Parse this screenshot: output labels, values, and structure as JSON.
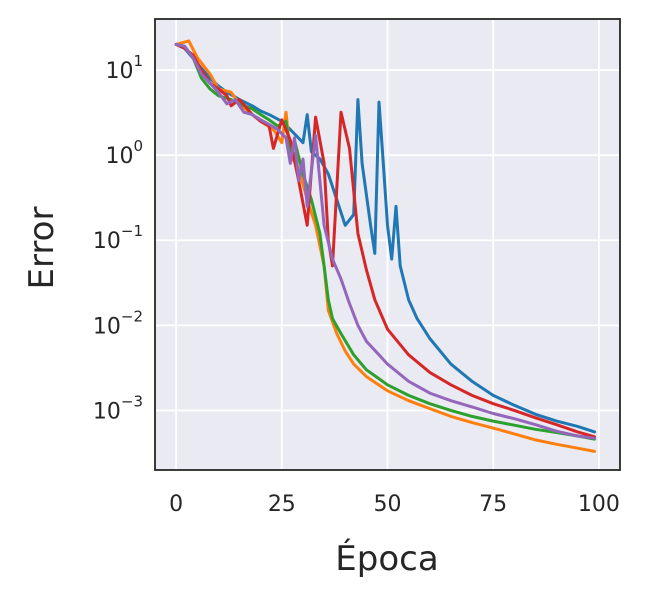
{
  "chart_data": {
    "type": "line",
    "xlabel": "Época",
    "ylabel": "Error",
    "xlim": [
      -5,
      105
    ],
    "ylim_log10": [
      -3.7,
      1.6
    ],
    "yscale": "log",
    "grid": true,
    "x_ticks": [
      0,
      25,
      50,
      75,
      100
    ],
    "x_tick_labels": [
      "0",
      "25",
      "50",
      "75",
      "100"
    ],
    "y_ticks_exponent": [
      1,
      0,
      -1,
      -2,
      -3
    ],
    "y_tick_base": "10",
    "y_tick_exponent_labels": [
      "1",
      "0",
      "−1",
      "−2",
      "−3"
    ],
    "colors": {
      "background": "#eaeaf2",
      "grid": "#ffffff",
      "spine": "#262626"
    },
    "series": [
      {
        "color": "#1f77b4",
        "points": [
          [
            0,
            20
          ],
          [
            2,
            18
          ],
          [
            5,
            12
          ],
          [
            8,
            8
          ],
          [
            10,
            6.5
          ],
          [
            12,
            5.5
          ],
          [
            15,
            4.5
          ],
          [
            18,
            3.8
          ],
          [
            20,
            3.3
          ],
          [
            22,
            3
          ],
          [
            25,
            2.5
          ],
          [
            27,
            2
          ],
          [
            30,
            1.4
          ],
          [
            31,
            3
          ],
          [
            32,
            1.1
          ],
          [
            34,
            0.9
          ],
          [
            36,
            0.6
          ],
          [
            38,
            0.3
          ],
          [
            40,
            0.15
          ],
          [
            42,
            0.2
          ],
          [
            43,
            4.5
          ],
          [
            44,
            0.8
          ],
          [
            46,
            0.15
          ],
          [
            47,
            0.07
          ],
          [
            48,
            4.2
          ],
          [
            49,
            0.8
          ],
          [
            50,
            0.15
          ],
          [
            51,
            0.06
          ],
          [
            52,
            0.25
          ],
          [
            53,
            0.05
          ],
          [
            55,
            0.02
          ],
          [
            57,
            0.012
          ],
          [
            60,
            0.007
          ],
          [
            65,
            0.0035
          ],
          [
            70,
            0.0022
          ],
          [
            75,
            0.0015
          ],
          [
            80,
            0.00115
          ],
          [
            85,
            0.0009
          ],
          [
            90,
            0.00075
          ],
          [
            95,
            0.00065
          ],
          [
            99,
            0.00056
          ]
        ]
      },
      {
        "color": "#ff7f0e",
        "points": [
          [
            0,
            20
          ],
          [
            3,
            22
          ],
          [
            5,
            14
          ],
          [
            8,
            9
          ],
          [
            10,
            6
          ],
          [
            13,
            5.5
          ],
          [
            15,
            4
          ],
          [
            18,
            3
          ],
          [
            20,
            2.5
          ],
          [
            23,
            2
          ],
          [
            25,
            1.4
          ],
          [
            26,
            3.2
          ],
          [
            27,
            1
          ],
          [
            29,
            0.7
          ],
          [
            31,
            0.3
          ],
          [
            33,
            0.15
          ],
          [
            35,
            0.05
          ],
          [
            36,
            0.015
          ],
          [
            38,
            0.008
          ],
          [
            40,
            0.005
          ],
          [
            42,
            0.0035
          ],
          [
            45,
            0.0025
          ],
          [
            50,
            0.0017
          ],
          [
            55,
            0.0013
          ],
          [
            60,
            0.00105
          ],
          [
            65,
            0.00085
          ],
          [
            70,
            0.00072
          ],
          [
            75,
            0.00062
          ],
          [
            80,
            0.00053
          ],
          [
            85,
            0.00045
          ],
          [
            90,
            0.0004
          ],
          [
            95,
            0.00036
          ],
          [
            99,
            0.00033
          ]
        ]
      },
      {
        "color": "#2ca02c",
        "points": [
          [
            0,
            20
          ],
          [
            2,
            19
          ],
          [
            4,
            14
          ],
          [
            6,
            8
          ],
          [
            8,
            6
          ],
          [
            10,
            5
          ],
          [
            13,
            4.5
          ],
          [
            15,
            4
          ],
          [
            18,
            3.5
          ],
          [
            20,
            3
          ],
          [
            22,
            2.6
          ],
          [
            24,
            2.2
          ],
          [
            26,
            2.5
          ],
          [
            27,
            1.1
          ],
          [
            28,
            1.5
          ],
          [
            30,
            0.6
          ],
          [
            32,
            0.3
          ],
          [
            34,
            0.12
          ],
          [
            35,
            0.05
          ],
          [
            36,
            0.02
          ],
          [
            37,
            0.012
          ],
          [
            39,
            0.008
          ],
          [
            42,
            0.0045
          ],
          [
            45,
            0.003
          ],
          [
            50,
            0.002
          ],
          [
            55,
            0.0015
          ],
          [
            60,
            0.0012
          ],
          [
            65,
            0.001
          ],
          [
            70,
            0.00085
          ],
          [
            75,
            0.00075
          ],
          [
            80,
            0.00067
          ],
          [
            85,
            0.0006
          ],
          [
            90,
            0.00055
          ],
          [
            95,
            0.0005
          ],
          [
            99,
            0.00046
          ]
        ]
      },
      {
        "color": "#d62728",
        "points": [
          [
            0,
            20
          ],
          [
            2,
            18
          ],
          [
            4,
            15
          ],
          [
            6,
            10
          ],
          [
            8,
            7
          ],
          [
            10,
            6
          ],
          [
            12,
            5
          ],
          [
            13,
            3.8
          ],
          [
            15,
            4.5
          ],
          [
            18,
            3
          ],
          [
            20,
            2.5
          ],
          [
            22,
            2.2
          ],
          [
            23,
            1.2
          ],
          [
            25,
            2.6
          ],
          [
            27,
            1.5
          ],
          [
            29,
            0.5
          ],
          [
            31,
            0.15
          ],
          [
            33,
            2.8
          ],
          [
            35,
            0.8
          ],
          [
            36,
            0.1
          ],
          [
            37,
            0.05
          ],
          [
            39,
            3.2
          ],
          [
            41,
            1.2
          ],
          [
            43,
            0.12
          ],
          [
            45,
            0.045
          ],
          [
            47,
            0.02
          ],
          [
            50,
            0.009
          ],
          [
            55,
            0.0045
          ],
          [
            60,
            0.0028
          ],
          [
            65,
            0.002
          ],
          [
            70,
            0.0015
          ],
          [
            75,
            0.0012
          ],
          [
            80,
            0.001
          ],
          [
            85,
            0.00082
          ],
          [
            90,
            0.00068
          ],
          [
            95,
            0.00056
          ],
          [
            99,
            0.00049
          ]
        ]
      },
      {
        "color": "#9467bd",
        "points": [
          [
            0,
            20
          ],
          [
            2,
            19
          ],
          [
            4,
            14
          ],
          [
            6,
            9
          ],
          [
            8,
            7
          ],
          [
            10,
            5.5
          ],
          [
            12,
            4
          ],
          [
            14,
            4.5
          ],
          [
            16,
            3.2
          ],
          [
            18,
            3
          ],
          [
            20,
            2.6
          ],
          [
            22,
            2.3
          ],
          [
            24,
            2
          ],
          [
            26,
            1.6
          ],
          [
            27,
            0.8
          ],
          [
            28,
            1.6
          ],
          [
            29,
            0.5
          ],
          [
            30,
            0.9
          ],
          [
            31,
            0.25
          ],
          [
            33,
            1.7
          ],
          [
            34,
            0.5
          ],
          [
            35,
            0.15
          ],
          [
            37,
            0.06
          ],
          [
            39,
            0.035
          ],
          [
            41,
            0.018
          ],
          [
            43,
            0.01
          ],
          [
            45,
            0.0065
          ],
          [
            48,
            0.0045
          ],
          [
            50,
            0.0035
          ],
          [
            55,
            0.0022
          ],
          [
            60,
            0.0016
          ],
          [
            65,
            0.0013
          ],
          [
            70,
            0.0011
          ],
          [
            75,
            0.00092
          ],
          [
            80,
            0.0008
          ],
          [
            85,
            0.00068
          ],
          [
            90,
            0.00057
          ],
          [
            95,
            0.0005
          ],
          [
            99,
            0.00047
          ]
        ]
      }
    ]
  }
}
